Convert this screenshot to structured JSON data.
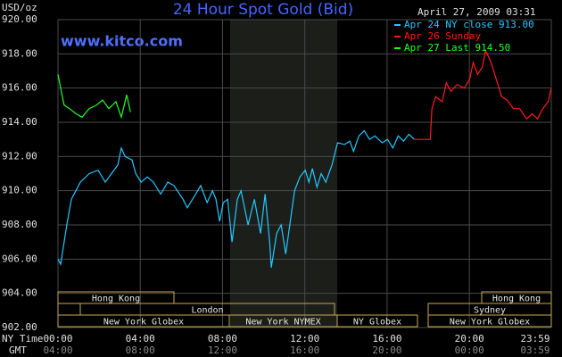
{
  "chart_data": {
    "type": "line",
    "title": "24 Hour Spot Gold (Bid)",
    "y_unit": "USD/oz",
    "timestamp": "April 27, 2009 03:31",
    "watermark": "www.kitco.com",
    "x_label": "NY Time",
    "x2_label": "GMT",
    "xlim": [
      0,
      23.983
    ],
    "ylim": [
      902,
      920
    ],
    "grid": true,
    "background": "#000000",
    "grid_color": "#4a4a4a",
    "xticks": [
      {
        "value": 0,
        "label": "00:00"
      },
      {
        "value": 4,
        "label": "04:00"
      },
      {
        "value": 8,
        "label": "08:00"
      },
      {
        "value": 12,
        "label": "12:00"
      },
      {
        "value": 16,
        "label": "16:00"
      },
      {
        "value": 20,
        "label": "20:00"
      },
      {
        "value": 23.983,
        "label": "23:59"
      }
    ],
    "x2ticks": [
      {
        "value": 0,
        "label": "04:00"
      },
      {
        "value": 4,
        "label": "08:00"
      },
      {
        "value": 8,
        "label": "12:00"
      },
      {
        "value": 12,
        "label": "16:00"
      },
      {
        "value": 16,
        "label": "20:00"
      },
      {
        "value": 20,
        "label": "00:00"
      },
      {
        "value": 23.983,
        "label": "03:59"
      }
    ],
    "yticks": [
      {
        "value": 920,
        "label": "920.00"
      },
      {
        "value": 918,
        "label": "918.00"
      },
      {
        "value": 916,
        "label": "916.00"
      },
      {
        "value": 914,
        "label": "914.00"
      },
      {
        "value": 912,
        "label": "912.00"
      },
      {
        "value": 910,
        "label": "910.00"
      },
      {
        "value": 908,
        "label": "908.00"
      },
      {
        "value": 906,
        "label": "906.00"
      },
      {
        "value": 904,
        "label": "904.00"
      },
      {
        "value": 902,
        "label": "902.00"
      }
    ],
    "sessions": [
      "Hong Kong",
      "London",
      "New York Globex",
      "New York NYMEX",
      "NY Globex",
      "Hong Kong",
      "Sydney",
      "New York Globex"
    ],
    "series": [
      {
        "name": "Apr 24 NY close 913.00",
        "color": "#22c8ff",
        "x": [
          0,
          0.13,
          0.43,
          0.65,
          1.09,
          1.52,
          1.95,
          2.3,
          2.6,
          2.91,
          3.08,
          3.26,
          3.6,
          3.78,
          4.04,
          4.34,
          4.64,
          4.99,
          5.34,
          5.64,
          6.08,
          6.29,
          6.64,
          6.94,
          7.25,
          7.51,
          7.68,
          7.86,
          8.03,
          8.25,
          8.46,
          8.72,
          8.9,
          9.24,
          9.55,
          9.85,
          10.07,
          10.29,
          10.37,
          10.63,
          10.85,
          11.07,
          11.33,
          11.5,
          11.76,
          12.02,
          12.2,
          12.37,
          12.59,
          12.8,
          13.02,
          13.32,
          13.59,
          13.93,
          14.19,
          14.37,
          14.63,
          14.89,
          15.15,
          15.41,
          15.76,
          16.02,
          16.28,
          16.54,
          16.8,
          17.06,
          17.32
        ],
        "values": [
          906,
          905.7,
          908,
          909.5,
          910.5,
          911,
          911.2,
          910.5,
          911,
          911.5,
          912.5,
          912,
          911.8,
          911,
          910.5,
          910.8,
          910.5,
          909.8,
          910.5,
          910.3,
          909.5,
          909,
          909.7,
          910.3,
          909.3,
          910,
          909.5,
          908.2,
          909.3,
          909.5,
          907,
          909.5,
          910,
          908,
          909.5,
          907.5,
          909.8,
          907,
          905.5,
          907.5,
          908,
          906.3,
          908.5,
          910,
          910.8,
          911.2,
          910.5,
          911.3,
          910.2,
          911,
          910.5,
          911.5,
          912.8,
          912.7,
          912.9,
          912.3,
          913.2,
          913.5,
          913,
          913.2,
          912.8,
          913,
          912.5,
          913.2,
          912.9,
          913.3,
          913
        ]
      },
      {
        "name": "Apr 26 Sunday",
        "color": "#ff1a1a",
        "x": [
          17.32,
          18.1,
          18.18,
          18.36,
          18.68,
          18.88,
          19.1,
          19.4,
          19.75,
          20.01,
          20.19,
          20.4,
          20.62,
          20.79,
          21.05,
          21.31,
          21.57,
          21.83,
          22.14,
          22.44,
          22.79,
          23.05,
          23.31,
          23.57,
          23.83,
          23.98
        ],
        "values": [
          913,
          913,
          914.8,
          915.5,
          915.2,
          916.3,
          915.8,
          916.2,
          916,
          916.5,
          917.5,
          916.8,
          917.2,
          918.2,
          917.5,
          916.5,
          915.5,
          915.3,
          914.8,
          914.8,
          914.2,
          914.5,
          914.2,
          914.8,
          915.2,
          916
        ]
      },
      {
        "name": "Apr 27 Last 914.50",
        "color": "#22ff22",
        "x": [
          0,
          0.13,
          0.3,
          0.56,
          0.87,
          1.17,
          1.52,
          1.87,
          2.17,
          2.47,
          2.82,
          3.08,
          3.34,
          3.52
        ],
        "values": [
          916.8,
          916,
          915,
          914.8,
          914.5,
          914.3,
          914.8,
          915,
          915.3,
          914.8,
          915.2,
          914.3,
          915.6,
          914.6
        ]
      }
    ]
  }
}
